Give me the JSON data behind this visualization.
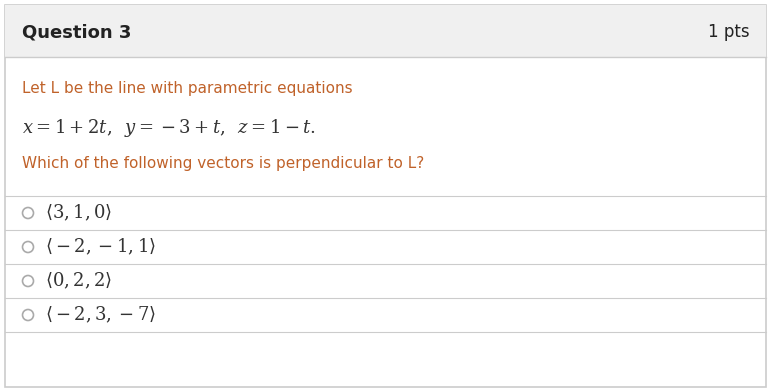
{
  "title": "Question 3",
  "pts": "1 pts",
  "header_bg": "#f0f0f0",
  "body_bg": "#ffffff",
  "border_color": "#cccccc",
  "header_text_color": "#222222",
  "question_text_color": "#c0622a",
  "answer_text_color": "#333333",
  "line1": "Let L be the line with parametric equations",
  "line2_math": "$x = 1 + 2t,\\;\\; y = -3 + t,\\;\\; z = 1 - t.$",
  "line3": "Which of the following vectors is perpendicular to L?",
  "options": [
    "$\\langle 3, 1, 0 \\rangle$",
    "$\\langle -2, -1, 1 \\rangle$",
    "$\\langle 0, 2, 2 \\rangle$",
    "$\\langle -2, 3, -7 \\rangle$"
  ],
  "option_text_color": "#333333",
  "divider_color": "#cccccc",
  "radio_color": "#aaaaaa",
  "title_fontsize": 13,
  "pts_fontsize": 12,
  "body_fontsize": 11,
  "math_fontsize": 13,
  "option_fontsize": 13
}
